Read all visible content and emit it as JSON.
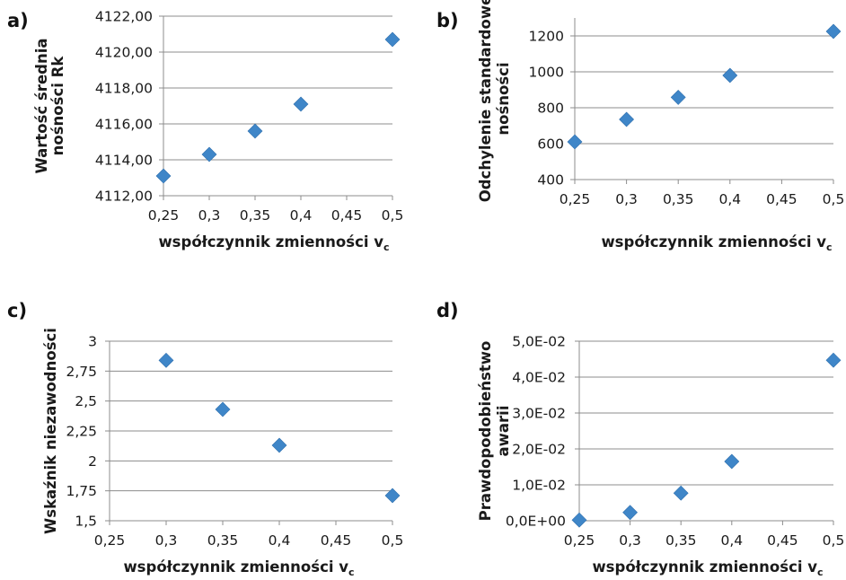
{
  "marker_color": "#3f86c8",
  "grid_color": "#8c8c8c",
  "chart_data": [
    {
      "type": "scatter",
      "panel_label": "a)",
      "xlabel": "współczynnik zmienności v",
      "xlabel_sub": "c",
      "ylabel": [
        "Wartość średnia",
        "nośności Rk"
      ],
      "x": [
        0.25,
        0.3,
        0.35,
        0.4,
        0.5
      ],
      "y": [
        4113.1,
        4114.3,
        4115.6,
        4117.1,
        4120.7
      ],
      "xlim": [
        0.25,
        0.5
      ],
      "ylim": [
        4112,
        4122
      ],
      "xticks": [
        0.25,
        0.3,
        0.35,
        0.4,
        0.45,
        0.5
      ],
      "xtick_labels": [
        "0,25",
        "0,3",
        "0,35",
        "0,4",
        "0,45",
        "0,5"
      ],
      "yticks": [
        4112,
        4114,
        4116,
        4118,
        4120,
        4122
      ],
      "ytick_labels": [
        "4112,00",
        "4114,00",
        "4116,00",
        "4118,00",
        "4120,00",
        "4122,00"
      ],
      "grid": "horizontal"
    },
    {
      "type": "scatter",
      "panel_label": "b)",
      "xlabel": "współczynnik zmienności v",
      "xlabel_sub": "c",
      "ylabel": [
        "Odchylenie standardowe",
        "nośności"
      ],
      "x": [
        0.25,
        0.3,
        0.35,
        0.4,
        0.5
      ],
      "y": [
        610,
        735,
        858,
        980,
        1225
      ],
      "xlim": [
        0.25,
        0.5
      ],
      "ylim": [
        400,
        1300
      ],
      "xticks": [
        0.25,
        0.3,
        0.35,
        0.4,
        0.45,
        0.5
      ],
      "xtick_labels": [
        "0,25",
        "0,3",
        "0,35",
        "0,4",
        "0,45",
        "0,5"
      ],
      "yticks": [
        400,
        600,
        800,
        1000,
        1200
      ],
      "ytick_labels": [
        "400",
        "600",
        "800",
        "1000",
        "1200"
      ],
      "grid": "horizontal"
    },
    {
      "type": "scatter",
      "panel_label": "c)",
      "xlabel": "współczynnik zmienności v",
      "xlabel_sub": "c",
      "ylabel": [
        "Wskaźnik niezawodności"
      ],
      "x": [
        0.3,
        0.35,
        0.4,
        0.5
      ],
      "y": [
        2.84,
        2.43,
        2.13,
        1.71
      ],
      "xlim": [
        0.25,
        0.5
      ],
      "ylim": [
        1.5,
        3
      ],
      "xticks": [
        0.25,
        0.3,
        0.35,
        0.4,
        0.45,
        0.5
      ],
      "xtick_labels": [
        "0,25",
        "0,3",
        "0,35",
        "0,4",
        "0,45",
        "0,5"
      ],
      "yticks": [
        1.5,
        1.75,
        2,
        2.25,
        2.5,
        2.75,
        3
      ],
      "ytick_labels": [
        "1,5",
        "1,75",
        "2",
        "2,25",
        "2,5",
        "2,75",
        "3"
      ],
      "grid": "horizontal"
    },
    {
      "type": "scatter",
      "panel_label": "d)",
      "xlabel": "współczynnik zmienności v",
      "xlabel_sub": "c",
      "ylabel": [
        "Prawdopodobieństwo",
        "awarii"
      ],
      "x": [
        0.25,
        0.3,
        0.35,
        0.4,
        0.5
      ],
      "y": [
        0.0002,
        0.0023,
        0.0077,
        0.0165,
        0.0447
      ],
      "xlim": [
        0.25,
        0.5
      ],
      "ylim": [
        0,
        0.05
      ],
      "xticks": [
        0.25,
        0.3,
        0.35,
        0.4,
        0.45,
        0.5
      ],
      "xtick_labels": [
        "0,25",
        "0,3",
        "0,35",
        "0,4",
        "0,45",
        "0,5"
      ],
      "yticks": [
        0,
        0.01,
        0.02,
        0.03,
        0.04,
        0.05
      ],
      "ytick_labels": [
        "0,0E+00",
        "1,0E-02",
        "2,0E-02",
        "3,0E-02",
        "4,0E-02",
        "5,0E-02"
      ],
      "grid": "horizontal"
    }
  ]
}
